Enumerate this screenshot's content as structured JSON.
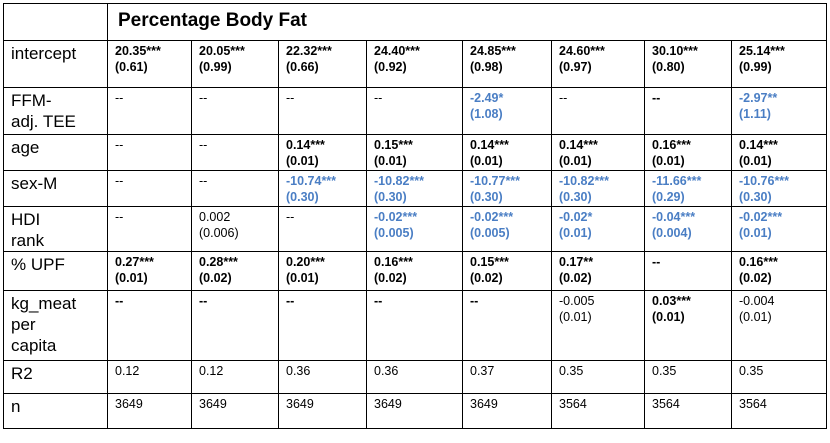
{
  "title": "Percentage Body Fat",
  "rows": [
    {
      "label_lines": [
        "intercept"
      ],
      "height": 47,
      "cells": [
        {
          "l1": "20.35***",
          "l2": "(0.61)",
          "style": "b"
        },
        {
          "l1": "20.05***",
          "l2": "(0.99)",
          "style": "b"
        },
        {
          "l1": "22.32***",
          "l2": "(0.66)",
          "style": "b"
        },
        {
          "l1": "24.40***",
          "l2": "(0.92)",
          "style": "b"
        },
        {
          "l1": "24.85***",
          "l2": "(0.98)",
          "style": "b"
        },
        {
          "l1": "24.60***",
          "l2": "(0.97)",
          "style": "b"
        },
        {
          "l1": "30.10***",
          "l2": "(0.80)",
          "style": "b"
        },
        {
          "l1": "25.14***",
          "l2": "(0.99)",
          "style": "b"
        }
      ]
    },
    {
      "label_lines": [
        "FFM-",
        "adj. TEE"
      ],
      "height": 47,
      "cells": [
        {
          "l1": "--",
          "l2": "",
          "style": ""
        },
        {
          "l1": "--",
          "l2": "",
          "style": ""
        },
        {
          "l1": "--",
          "l2": "",
          "style": ""
        },
        {
          "l1": "--",
          "l2": "",
          "style": ""
        },
        {
          "l1": "-2.49*",
          "l2": "(1.08)",
          "style": "blue"
        },
        {
          "l1": "--",
          "l2": "",
          "style": ""
        },
        {
          "l1": "--",
          "l2": "",
          "style": "b"
        },
        {
          "l1": "-2.97**",
          "l2": "(1.11)",
          "style": "blue"
        }
      ]
    },
    {
      "label_lines": [
        "age"
      ],
      "height": 36,
      "cells": [
        {
          "l1": "--",
          "l2": "",
          "style": ""
        },
        {
          "l1": "--",
          "l2": "",
          "style": ""
        },
        {
          "l1": "0.14***",
          "l2": "(0.01)",
          "style": "b"
        },
        {
          "l1": "0.15***",
          "l2": "(0.01)",
          "style": "b"
        },
        {
          "l1": "0.14***",
          "l2": "(0.01)",
          "style": "b"
        },
        {
          "l1": "0.14***",
          "l2": "(0.01)",
          "style": "b"
        },
        {
          "l1": "0.16***",
          "l2": "(0.01)",
          "style": "b"
        },
        {
          "l1": "0.14***",
          "l2": "(0.01)",
          "style": "b"
        }
      ]
    },
    {
      "label_lines": [
        "sex-M"
      ],
      "height": 36,
      "cells": [
        {
          "l1": "--",
          "l2": "",
          "style": ""
        },
        {
          "l1": "--",
          "l2": "",
          "style": ""
        },
        {
          "l1": "-10.74***",
          "l2": "(0.30)",
          "style": "blue"
        },
        {
          "l1": "-10.82***",
          "l2": "(0.30)",
          "style": "blue"
        },
        {
          "l1": "-10.77***",
          "l2": "(0.30)",
          "style": "blue"
        },
        {
          "l1": "-10.82***",
          "l2": "(0.30)",
          "style": "blue"
        },
        {
          "l1": "-11.66***",
          "l2": "(0.29)",
          "style": "blue"
        },
        {
          "l1": "-10.76***",
          "l2": "(0.30)",
          "style": "blue"
        }
      ]
    },
    {
      "label_lines": [
        "HDI",
        "rank"
      ],
      "height": 45,
      "cells": [
        {
          "l1": "--",
          "l2": "",
          "style": ""
        },
        {
          "l1": "0.002",
          "l2": "(0.006)",
          "style": ""
        },
        {
          "l1": "--",
          "l2": "",
          "style": ""
        },
        {
          "l1": "-0.02***",
          "l2": "(0.005)",
          "style": "blue"
        },
        {
          "l1": "-0.02***",
          "l2": "(0.005)",
          "style": "blue"
        },
        {
          "l1": "-0.02*",
          "l2": "(0.01)",
          "style": "blue"
        },
        {
          "l1": "-0.04***",
          "l2": "(0.004)",
          "style": "blue"
        },
        {
          "l1": "-0.02***",
          "l2": "(0.01)",
          "style": "blue"
        }
      ]
    },
    {
      "label_lines": [
        "% UPF"
      ],
      "height": 39,
      "cells": [
        {
          "l1": "0.27***",
          "l2": "(0.01)",
          "style": "b"
        },
        {
          "l1": "0.28***",
          "l2": "(0.02)",
          "style": "b"
        },
        {
          "l1": "0.20***",
          "l2": "(0.01)",
          "style": "b"
        },
        {
          "l1": "0.16***",
          "l2": "(0.02)",
          "style": "b"
        },
        {
          "l1": "0.15***",
          "l2": "(0.02)",
          "style": "b"
        },
        {
          "l1": "0.17**",
          "l2": "(0.02)",
          "style": "b"
        },
        {
          "l1": "--",
          "l2": "",
          "style": "b"
        },
        {
          "l1": "0.16***",
          "l2": "(0.02)",
          "style": "b"
        }
      ]
    },
    {
      "label_lines": [
        "kg_meat",
        "per",
        "capita"
      ],
      "height": 70,
      "cells": [
        {
          "l1": "--",
          "l2": "",
          "style": "b"
        },
        {
          "l1": "--",
          "l2": "",
          "style": "b"
        },
        {
          "l1": "--",
          "l2": "",
          "style": "b"
        },
        {
          "l1": "--",
          "l2": "",
          "style": "b"
        },
        {
          "l1": "--",
          "l2": "",
          "style": "b"
        },
        {
          "l1": "-0.005",
          "l2": "(0.01)",
          "style": ""
        },
        {
          "l1": "0.03***",
          "l2": "(0.01)",
          "style": "b"
        },
        {
          "l1": "-0.004",
          "l2": "(0.01)",
          "style": ""
        }
      ]
    },
    {
      "label_lines": [
        "R2"
      ],
      "height": 33,
      "cells": [
        {
          "l1": "0.12",
          "l2": "",
          "style": ""
        },
        {
          "l1": "0.12",
          "l2": "",
          "style": ""
        },
        {
          "l1": "0.36",
          "l2": "",
          "style": ""
        },
        {
          "l1": "0.36",
          "l2": "",
          "style": ""
        },
        {
          "l1": "0.37",
          "l2": "",
          "style": ""
        },
        {
          "l1": "0.35",
          "l2": "",
          "style": ""
        },
        {
          "l1": "0.35",
          "l2": "",
          "style": ""
        },
        {
          "l1": "0.35",
          "l2": "",
          "style": ""
        }
      ]
    },
    {
      "label_lines": [
        "n"
      ],
      "height": 35,
      "cells": [
        {
          "l1": "3649",
          "l2": "",
          "style": ""
        },
        {
          "l1": "3649",
          "l2": "",
          "style": ""
        },
        {
          "l1": "3649",
          "l2": "",
          "style": ""
        },
        {
          "l1": "3649",
          "l2": "",
          "style": ""
        },
        {
          "l1": "3649",
          "l2": "",
          "style": ""
        },
        {
          "l1": "3564",
          "l2": "",
          "style": ""
        },
        {
          "l1": "3564",
          "l2": "",
          "style": ""
        },
        {
          "l1": "3564",
          "l2": "",
          "style": ""
        }
      ]
    }
  ],
  "colors": {
    "significant_negative": "#4a7ec4",
    "text": "#000000",
    "border": "#000000"
  }
}
